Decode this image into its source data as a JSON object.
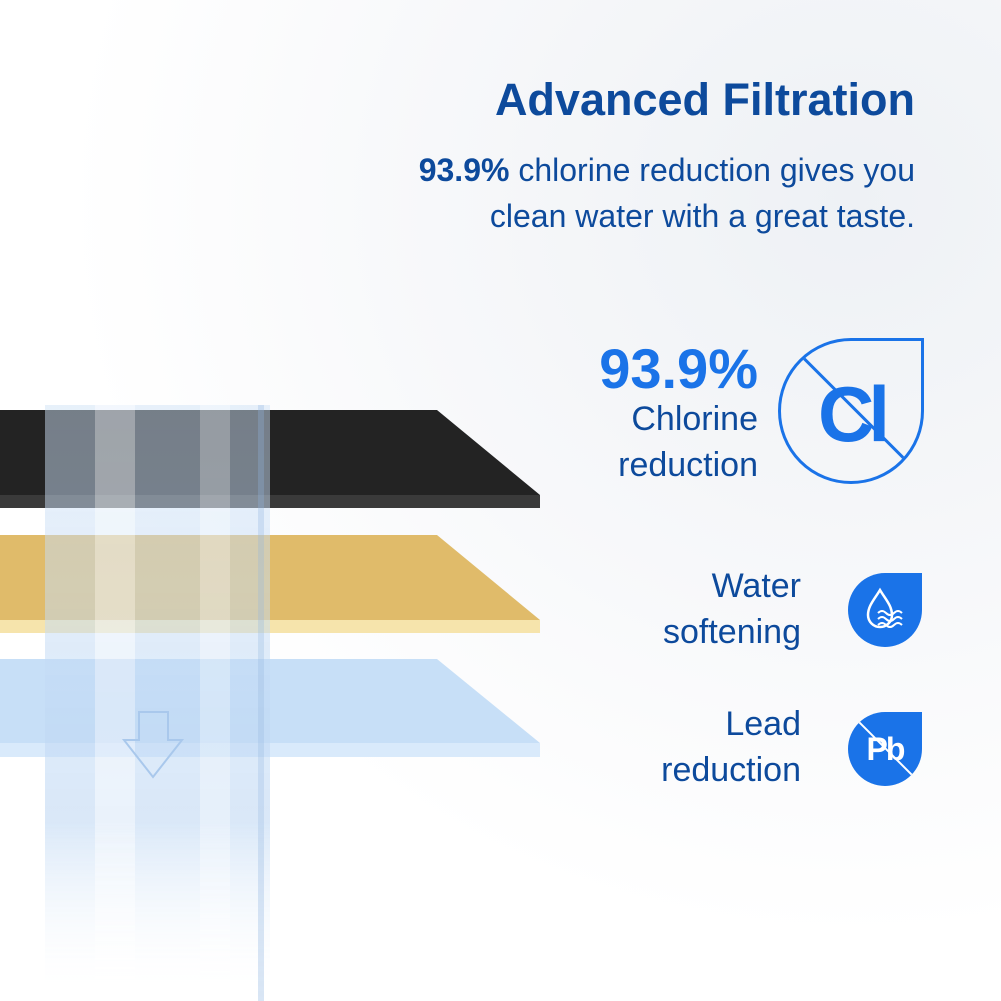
{
  "header": {
    "title": "Advanced Filtration",
    "subtitle_highlight": "93.9%",
    "subtitle_line1_rest": " chlorine reduction gives you",
    "subtitle_line2": "clean water with a great taste."
  },
  "features": [
    {
      "value": "93.9%",
      "line1": "Chlorine",
      "line2": "reduction",
      "icon": "chlorine-crossed-icon",
      "icon_text": "Cl"
    },
    {
      "line1": "Water",
      "line2": "softening",
      "icon": "water-drop-waves-icon"
    },
    {
      "line1": "Lead",
      "line2": "reduction",
      "icon": "lead-crossed-icon",
      "icon_text": "Pb"
    }
  ],
  "colors": {
    "title": "#0d4a9c",
    "accent": "#1a73e8",
    "layer_carbon": "#222222",
    "layer_gold": "#e0bb6a",
    "layer_blue": "#c7dff7"
  }
}
